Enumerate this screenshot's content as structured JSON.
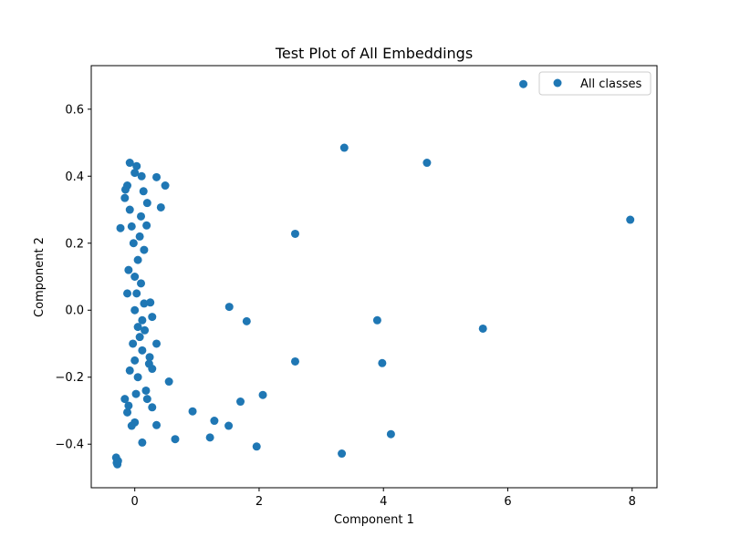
{
  "chart_data": {
    "type": "scatter",
    "title": "Test Plot of All Embeddings",
    "xlabel": "Component 1",
    "ylabel": "Component 2",
    "xlim": [
      -0.7,
      8.4
    ],
    "ylim": [
      -0.53,
      0.73
    ],
    "xticks": [
      0,
      2,
      4,
      6,
      8
    ],
    "yticks": [
      -0.4,
      -0.2,
      0.0,
      0.2,
      0.4,
      0.6
    ],
    "xtick_labels": [
      "0",
      "2",
      "4",
      "6",
      "8"
    ],
    "ytick_labels": [
      "−0.4",
      "−0.2",
      "0.0",
      "0.2",
      "0.4",
      "0.6"
    ],
    "grid": false,
    "legend_position": "upper right",
    "colors": {
      "marker": "#1f77b4",
      "axes": "#000000",
      "background": "#ffffff",
      "legend_border": "#cccccc"
    },
    "series": [
      {
        "name": "All classes",
        "points": [
          [
            6.25,
            0.675
          ],
          [
            3.37,
            0.485
          ],
          [
            4.7,
            0.44
          ],
          [
            7.97,
            0.27
          ],
          [
            2.58,
            0.228
          ],
          [
            1.52,
            0.01
          ],
          [
            1.8,
            -0.033
          ],
          [
            3.9,
            -0.03
          ],
          [
            5.6,
            -0.055
          ],
          [
            2.58,
            -0.153
          ],
          [
            3.98,
            -0.158
          ],
          [
            0.55,
            -0.213
          ],
          [
            2.06,
            -0.253
          ],
          [
            1.7,
            -0.273
          ],
          [
            0.93,
            -0.302
          ],
          [
            1.28,
            -0.33
          ],
          [
            1.51,
            -0.345
          ],
          [
            0.35,
            -0.343
          ],
          [
            4.12,
            -0.37
          ],
          [
            1.21,
            -0.38
          ],
          [
            0.65,
            -0.385
          ],
          [
            1.96,
            -0.407
          ],
          [
            3.33,
            -0.428
          ],
          [
            0.12,
            -0.395
          ],
          [
            0.35,
            0.397
          ],
          [
            0.49,
            0.372
          ],
          [
            0.42,
            0.307
          ],
          [
            0.2,
            0.32
          ],
          [
            0.19,
            0.253
          ],
          [
            0.14,
            0.355
          ],
          [
            0.11,
            0.4
          ],
          [
            0.03,
            0.43
          ],
          [
            -0.08,
            0.44
          ],
          [
            0.0,
            0.41
          ],
          [
            0.35,
            -0.1
          ],
          [
            0.28,
            -0.02
          ],
          [
            0.25,
            0.023
          ],
          [
            0.28,
            -0.175
          ],
          [
            0.23,
            -0.16
          ],
          [
            0.24,
            -0.14
          ],
          [
            0.28,
            -0.29
          ],
          [
            0.2,
            -0.265
          ],
          [
            0.18,
            -0.24
          ],
          [
            0.0,
            -0.335
          ],
          [
            -0.05,
            -0.345
          ],
          [
            -0.12,
            -0.305
          ],
          [
            -0.1,
            -0.285
          ],
          [
            -0.16,
            -0.265
          ],
          [
            -0.3,
            -0.44
          ],
          [
            -0.29,
            -0.455
          ],
          [
            -0.28,
            -0.46
          ],
          [
            -0.27,
            -0.45
          ],
          [
            -0.23,
            0.245
          ],
          [
            -0.16,
            0.335
          ],
          [
            -0.12,
            0.372
          ],
          [
            -0.15,
            0.36
          ],
          [
            -0.02,
            0.2
          ],
          [
            0.05,
            0.15
          ],
          [
            0.0,
            0.1
          ],
          [
            0.03,
            0.05
          ],
          [
            0.0,
            0.0
          ],
          [
            0.05,
            -0.05
          ],
          [
            -0.03,
            -0.1
          ],
          [
            0.0,
            -0.15
          ],
          [
            0.05,
            -0.2
          ],
          [
            -0.05,
            0.25
          ],
          [
            0.1,
            0.28
          ],
          [
            -0.08,
            0.3
          ],
          [
            0.08,
            0.22
          ],
          [
            -0.1,
            0.12
          ],
          [
            0.1,
            0.08
          ],
          [
            0.08,
            -0.08
          ],
          [
            0.12,
            -0.12
          ],
          [
            -0.08,
            -0.18
          ],
          [
            0.02,
            -0.25
          ],
          [
            0.15,
            0.18
          ],
          [
            0.12,
            -0.03
          ],
          [
            -0.12,
            0.05
          ],
          [
            0.15,
            0.02
          ],
          [
            0.16,
            -0.06
          ]
        ]
      }
    ]
  }
}
